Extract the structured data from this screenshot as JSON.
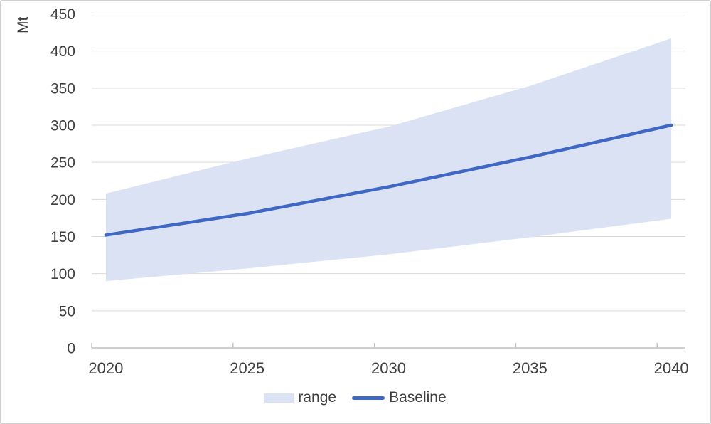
{
  "chart_data": {
    "type": "area",
    "title": "",
    "xlabel": "",
    "ylabel": "Mt",
    "x": [
      2020,
      2025,
      2030,
      2035,
      2040
    ],
    "x_tick_labels": [
      "2020",
      "2025",
      "2030",
      "2035",
      "2040"
    ],
    "y_ticks": [
      0,
      50,
      100,
      150,
      200,
      250,
      300,
      350,
      400,
      450
    ],
    "ylim": [
      0,
      450
    ],
    "xlim": [
      2019.5,
      2040.5
    ],
    "x_major_tick_positions": [
      2019.5,
      2024.5,
      2029.5,
      2034.5,
      2039.5
    ],
    "grid": true,
    "legend_position": "bottom",
    "series": [
      {
        "name": "range",
        "kind": "band",
        "upper": [
          208,
          255,
          298,
          353,
          417
        ],
        "lower": [
          90,
          107,
          126,
          149,
          174
        ],
        "color": "#DAE2F3"
      },
      {
        "name": "Baseline",
        "kind": "line",
        "values": [
          152,
          181,
          217,
          257,
          300
        ],
        "color": "#3E68C4"
      }
    ]
  },
  "style": {
    "background": "#FFFFFF",
    "border_color": "#CFCFCF",
    "grid_color": "#D9D9D9",
    "axis_color": "#BFBFBF",
    "text_color": "#404040"
  }
}
